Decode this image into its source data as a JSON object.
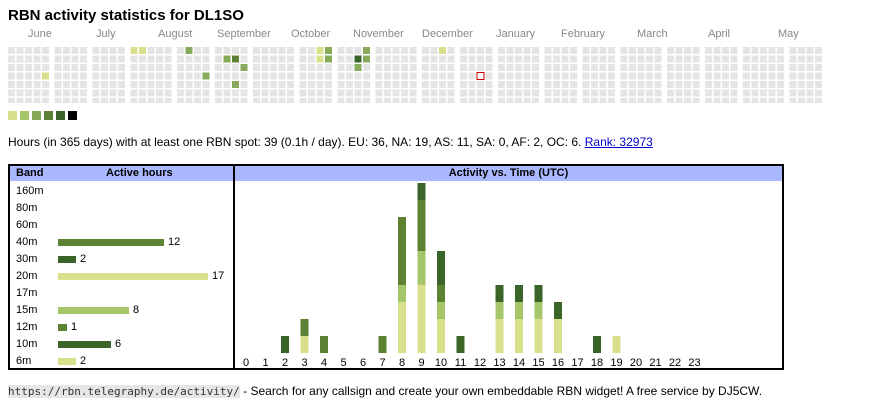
{
  "page": {
    "title": "RBN activity statistics for DL1SO",
    "months": [
      "June",
      "July",
      "August",
      "September",
      "October",
      "November",
      "December",
      "January",
      "February",
      "March",
      "April",
      "May"
    ],
    "summary_text": "Hours (in 365 days) with at least one RBN spot: 39 (0.1h / day). EU: 36, NA: 19, AS: 11, SA: 0, AF: 2, OC: 6.",
    "rank_link": "Rank: 32973",
    "footer_url": "https://rbn.telegraphy.de/activity/",
    "footer_text": " - Search for any callsign and create your own embeddable RBN widget! A free service by DJ5CW."
  },
  "colors": {
    "empty_cell": "#e4e4e4",
    "today_outline": "#cc0000",
    "header_bg": "#aab8ff",
    "levels": [
      "#d8e08c",
      "#a6c66a",
      "#86aa5a",
      "#5e8234",
      "#3a6428",
      "#000000"
    ]
  },
  "calendar": {
    "today": {
      "week": 50,
      "day": 3
    },
    "active_cells": [
      {
        "week": 4,
        "day": 3,
        "level": 0
      },
      {
        "week": 13,
        "day": 0,
        "level": 0
      },
      {
        "week": 14,
        "day": 0,
        "level": 0
      },
      {
        "week": 19,
        "day": 0,
        "level": 2
      },
      {
        "week": 21,
        "day": 3,
        "level": 2
      },
      {
        "week": 23,
        "day": 1,
        "level": 2
      },
      {
        "week": 24,
        "day": 1,
        "level": 3
      },
      {
        "week": 24,
        "day": 4,
        "level": 2
      },
      {
        "week": 25,
        "day": 2,
        "level": 2
      },
      {
        "week": 33,
        "day": 0,
        "level": 0
      },
      {
        "week": 33,
        "day": 1,
        "level": 0
      },
      {
        "week": 34,
        "day": 0,
        "level": 2
      },
      {
        "week": 34,
        "day": 1,
        "level": 2
      },
      {
        "week": 37,
        "day": 1,
        "level": 4
      },
      {
        "week": 37,
        "day": 2,
        "level": 2
      },
      {
        "week": 38,
        "day": 0,
        "level": 2
      },
      {
        "week": 38,
        "day": 1,
        "level": 2
      },
      {
        "week": 46,
        "day": 0,
        "level": 0
      }
    ]
  },
  "legend": {
    "levels": [
      0,
      1,
      2,
      3,
      4,
      5
    ]
  },
  "band_chart": {
    "header_band": "Band",
    "header_hours": "Active hours",
    "max_value": 17,
    "bands": [
      {
        "name": "160m",
        "hours": null,
        "color": "#5e8234"
      },
      {
        "name": "80m",
        "hours": null,
        "color": "#86aa5a"
      },
      {
        "name": "60m",
        "hours": null,
        "color": "#5e8234"
      },
      {
        "name": "40m",
        "hours": "12",
        "color": "#5e8234"
      },
      {
        "name": "30m",
        "hours": "2",
        "color": "#3a6428"
      },
      {
        "name": "20m",
        "hours": "17",
        "color": "#d8e08c"
      },
      {
        "name": "17m",
        "hours": null,
        "color": "#d8e08c"
      },
      {
        "name": "15m",
        "hours": "8",
        "color": "#a6c66a"
      },
      {
        "name": "12m",
        "hours": "1",
        "color": "#5e8234"
      },
      {
        "name": "10m",
        "hours": "6",
        "color": "#3a6428"
      },
      {
        "name": "6m",
        "hours": "2",
        "color": "#d8e08c"
      }
    ]
  },
  "chart_data": {
    "type": "bar",
    "title": "Activity vs. Time (UTC)",
    "x": [
      "0",
      "1",
      "2",
      "3",
      "4",
      "5",
      "6",
      "7",
      "8",
      "9",
      "10",
      "11",
      "12",
      "13",
      "14",
      "15",
      "16",
      "17",
      "18",
      "19",
      "20",
      "21",
      "22",
      "23"
    ],
    "stacked": true,
    "ymax": 8.5,
    "series": [
      {
        "color": "#d8e08c",
        "values": [
          0,
          0,
          0,
          1,
          0,
          0,
          0,
          0,
          3,
          4,
          2,
          0,
          0,
          2,
          2,
          2,
          2,
          0,
          0,
          1,
          0,
          0,
          0,
          0
        ]
      },
      {
        "color": "#a6c66a",
        "values": [
          0,
          0,
          0,
          0,
          0,
          0,
          0,
          0,
          1,
          2,
          1,
          0,
          0,
          1,
          1,
          1,
          0,
          0,
          0,
          0,
          0,
          0,
          0,
          0
        ]
      },
      {
        "color": "#5e8234",
        "values": [
          0,
          0,
          0,
          1,
          1,
          0,
          0,
          1,
          4,
          3,
          1,
          0,
          0,
          0,
          0,
          0,
          0,
          0,
          0,
          0,
          0,
          0,
          0,
          0
        ]
      },
      {
        "color": "#3a6428",
        "values": [
          0,
          0,
          1,
          0,
          0,
          0,
          0,
          0,
          0,
          1,
          2,
          1,
          0,
          1,
          1,
          1,
          1,
          0,
          1,
          0,
          0,
          0,
          0,
          0
        ]
      }
    ]
  }
}
